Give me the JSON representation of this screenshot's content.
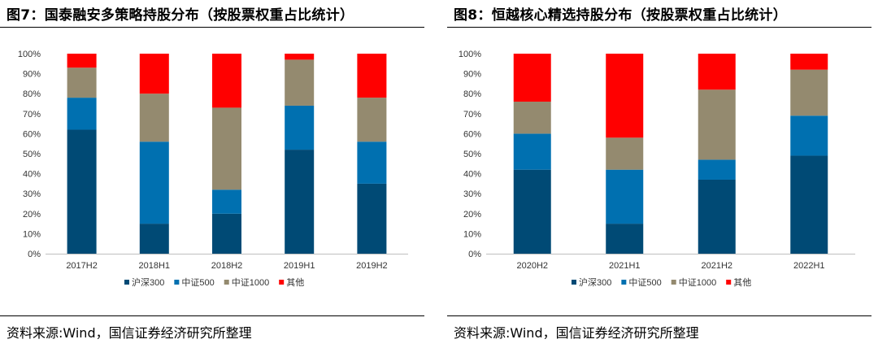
{
  "figures": [
    {
      "title": "图7：国泰融安多策略持股分布（按股票权重占比统计）",
      "source": "资料来源:Wind，国信证券经济研究所整理",
      "chart_data": {
        "type": "bar",
        "stacked": true,
        "categories": [
          "2017H2",
          "2018H1",
          "2018H2",
          "2019H1",
          "2019H2"
        ],
        "series": [
          {
            "name": "沪深300",
            "color": "#004A75",
            "values": [
              62,
              15,
              20,
              52,
              35
            ]
          },
          {
            "name": "中证500",
            "color": "#0070B0",
            "values": [
              16,
              41,
              12,
              22,
              21
            ]
          },
          {
            "name": "中证1000",
            "color": "#948A6F",
            "values": [
              15,
              24,
              41,
              23,
              22
            ]
          },
          {
            "name": "其他",
            "color": "#FF0000",
            "values": [
              7,
              20,
              27,
              3,
              22
            ]
          }
        ],
        "ylim": [
          0,
          100
        ],
        "yticks": [
          "0%",
          "10%",
          "20%",
          "30%",
          "40%",
          "50%",
          "60%",
          "70%",
          "80%",
          "90%",
          "100%"
        ],
        "grid": false,
        "legend": "bottom"
      }
    },
    {
      "title": "图8：恒越核心精选持股分布（按股票权重占比统计）",
      "source": "资料来源:Wind，国信证券经济研究所整理",
      "chart_data": {
        "type": "bar",
        "stacked": true,
        "categories": [
          "2020H2",
          "2021H1",
          "2021H2",
          "2022H1"
        ],
        "series": [
          {
            "name": "沪深300",
            "color": "#004A75",
            "values": [
              42,
              15,
              37,
              49
            ]
          },
          {
            "name": "中证500",
            "color": "#0070B0",
            "values": [
              18,
              27,
              10,
              20
            ]
          },
          {
            "name": "中证1000",
            "color": "#948A6F",
            "values": [
              16,
              16,
              35,
              23
            ]
          },
          {
            "name": "其他",
            "color": "#FF0000",
            "values": [
              24,
              42,
              18,
              8
            ]
          }
        ],
        "ylim": [
          0,
          100
        ],
        "yticks": [
          "0%",
          "10%",
          "20%",
          "30%",
          "40%",
          "50%",
          "60%",
          "70%",
          "80%",
          "90%",
          "100%"
        ],
        "grid": false,
        "legend": "bottom"
      }
    }
  ]
}
